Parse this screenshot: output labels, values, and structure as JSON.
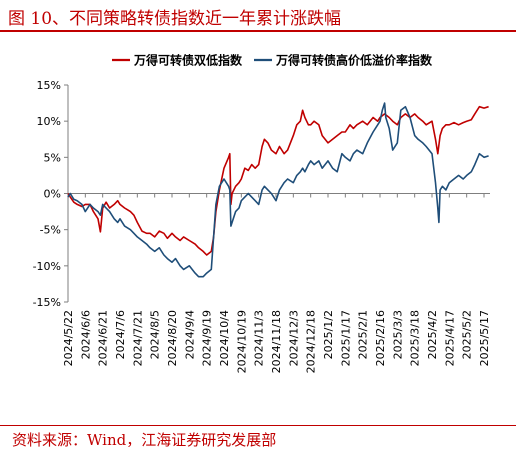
{
  "header": {
    "title": "图 10、不同策略转债指数近一年累计涨跌幅"
  },
  "footer": {
    "source": "资料来源：Wind，江海证券研究发展部"
  },
  "colors": {
    "series1": "#c00000",
    "series2": "#1f4e79",
    "accent": "#c00000"
  },
  "chart_data": {
    "type": "line",
    "title": "",
    "xlabel": "",
    "ylabel": "",
    "ylim": [
      -15,
      15
    ],
    "yticks": [
      -15,
      -10,
      -5,
      0,
      5,
      10,
      15
    ],
    "ytick_labels": [
      "-15%",
      "-10%",
      "-5%",
      "0%",
      "5%",
      "10%",
      "15%"
    ],
    "legend_position": "top",
    "grid": false,
    "x_dates": [
      "2024/5/22",
      "2024/6/6",
      "2024/6/21",
      "2024/7/6",
      "2024/7/21",
      "2024/8/5",
      "2024/8/20",
      "2024/9/4",
      "2024/9/19",
      "2024/10/4",
      "2024/10/19",
      "2024/11/3",
      "2024/11/18",
      "2024/12/3",
      "2024/12/18",
      "2025/1/2",
      "2025/1/17",
      "2025/2/1",
      "2025/2/16",
      "2025/3/3",
      "2025/3/18",
      "2025/4/2",
      "2025/4/17",
      "2025/5/2",
      "2025/5/17"
    ],
    "series": [
      {
        "name": "万得可转债双低指数",
        "color": "#c00000",
        "points": [
          [
            "2024/5/22",
            0.0
          ],
          [
            "2024/5/24",
            -0.5
          ],
          [
            "2024/5/27",
            -1.2
          ],
          [
            "2024/5/30",
            -1.5
          ],
          [
            "2024/6/3",
            -1.8
          ],
          [
            "2024/6/6",
            -1.5
          ],
          [
            "2024/6/10",
            -1.5
          ],
          [
            "2024/6/13",
            -2.5
          ],
          [
            "2024/6/17",
            -3.5
          ],
          [
            "2024/6/19",
            -5.3
          ],
          [
            "2024/6/21",
            -2.0
          ],
          [
            "2024/6/24",
            -1.2
          ],
          [
            "2024/6/27",
            -2.0
          ],
          [
            "2024/7/1",
            -1.5
          ],
          [
            "2024/7/4",
            -1.0
          ],
          [
            "2024/7/6",
            -1.5
          ],
          [
            "2024/7/10",
            -2.0
          ],
          [
            "2024/7/15",
            -2.5
          ],
          [
            "2024/7/18",
            -3.0
          ],
          [
            "2024/7/21",
            -4.0
          ],
          [
            "2024/7/25",
            -5.2
          ],
          [
            "2024/7/29",
            -5.5
          ],
          [
            "2024/8/1",
            -5.5
          ],
          [
            "2024/8/5",
            -6.0
          ],
          [
            "2024/8/9",
            -5.2
          ],
          [
            "2024/8/13",
            -5.5
          ],
          [
            "2024/8/16",
            -6.2
          ],
          [
            "2024/8/20",
            -5.5
          ],
          [
            "2024/8/23",
            -6.0
          ],
          [
            "2024/8/27",
            -6.5
          ],
          [
            "2024/8/30",
            -6.0
          ],
          [
            "2024/9/4",
            -6.5
          ],
          [
            "2024/9/9",
            -7.0
          ],
          [
            "2024/9/12",
            -7.5
          ],
          [
            "2024/9/16",
            -8.0
          ],
          [
            "2024/9/19",
            -8.5
          ],
          [
            "2024/9/23",
            -8.0
          ],
          [
            "2024/9/25",
            -6.0
          ],
          [
            "2024/9/27",
            -2.5
          ],
          [
            "2024/9/30",
            0.5
          ],
          [
            "2024/10/4",
            3.5
          ],
          [
            "2024/10/8",
            5.0
          ],
          [
            "2024/10/9",
            5.5
          ],
          [
            "2024/10/10",
            -1.5
          ],
          [
            "2024/10/11",
            0.0
          ],
          [
            "2024/10/14",
            1.0
          ],
          [
            "2024/10/17",
            1.5
          ],
          [
            "2024/10/19",
            2.0
          ],
          [
            "2024/10/22",
            3.5
          ],
          [
            "2024/10/25",
            3.2
          ],
          [
            "2024/10/28",
            4.0
          ],
          [
            "2024/10/31",
            3.5
          ],
          [
            "2024/11/3",
            4.0
          ],
          [
            "2024/11/6",
            6.5
          ],
          [
            "2024/11/8",
            7.5
          ],
          [
            "2024/11/11",
            7.0
          ],
          [
            "2024/11/14",
            6.0
          ],
          [
            "2024/11/18",
            5.5
          ],
          [
            "2024/11/21",
            6.5
          ],
          [
            "2024/11/25",
            5.5
          ],
          [
            "2024/11/28",
            6.0
          ],
          [
            "2024/12/3",
            8.0
          ],
          [
            "2024/12/6",
            9.5
          ],
          [
            "2024/12/9",
            10.0
          ],
          [
            "2024/12/11",
            11.5
          ],
          [
            "2024/12/13",
            10.5
          ],
          [
            "2024/12/16",
            9.5
          ],
          [
            "2024/12/18",
            9.5
          ],
          [
            "2024/12/21",
            10.0
          ],
          [
            "2024/12/25",
            9.5
          ],
          [
            "2024/12/28",
            8.0
          ],
          [
            "2025/1/2",
            7.0
          ],
          [
            "2025/1/6",
            7.5
          ],
          [
            "2025/1/10",
            8.0
          ],
          [
            "2025/1/14",
            8.5
          ],
          [
            "2025/1/17",
            8.5
          ],
          [
            "2025/1/21",
            9.5
          ],
          [
            "2025/1/24",
            9.0
          ],
          [
            "2025/1/27",
            9.5
          ],
          [
            "2025/2/1",
            10.0
          ],
          [
            "2025/2/5",
            9.5
          ],
          [
            "2025/2/10",
            10.5
          ],
          [
            "2025/2/14",
            10.0
          ],
          [
            "2025/2/16",
            10.5
          ],
          [
            "2025/2/20",
            11.0
          ],
          [
            "2025/2/24",
            10.5
          ],
          [
            "2025/2/27",
            10.0
          ],
          [
            "2025/3/3",
            9.5
          ],
          [
            "2025/3/6",
            10.5
          ],
          [
            "2025/3/10",
            11.0
          ],
          [
            "2025/3/14",
            10.5
          ],
          [
            "2025/3/18",
            11.0
          ],
          [
            "2025/3/21",
            10.5
          ],
          [
            "2025/3/25",
            10.0
          ],
          [
            "2025/3/28",
            9.5
          ],
          [
            "2025/4/2",
            10.0
          ],
          [
            "2025/4/5",
            7.5
          ],
          [
            "2025/4/7",
            5.5
          ],
          [
            "2025/4/9",
            8.0
          ],
          [
            "2025/4/11",
            9.0
          ],
          [
            "2025/4/14",
            9.5
          ],
          [
            "2025/4/17",
            9.5
          ],
          [
            "2025/4/21",
            9.8
          ],
          [
            "2025/4/25",
            9.5
          ],
          [
            "2025/4/29",
            9.8
          ],
          [
            "2025/5/2",
            10.0
          ],
          [
            "2025/5/6",
            10.2
          ],
          [
            "2025/5/9",
            11.0
          ],
          [
            "2025/5/13",
            12.0
          ],
          [
            "2025/5/17",
            11.8
          ],
          [
            "2025/5/21",
            12.0
          ]
        ]
      },
      {
        "name": "万得可转债高价低溢价率指数",
        "color": "#1f4e79",
        "points": [
          [
            "2024/5/22",
            -0.5
          ],
          [
            "2024/5/24",
            0.0
          ],
          [
            "2024/5/27",
            -0.8
          ],
          [
            "2024/5/30",
            -1.0
          ],
          [
            "2024/6/3",
            -1.5
          ],
          [
            "2024/6/6",
            -2.5
          ],
          [
            "2024/6/10",
            -1.5
          ],
          [
            "2024/6/13",
            -2.0
          ],
          [
            "2024/6/17",
            -2.5
          ],
          [
            "2024/6/19",
            -3.0
          ],
          [
            "2024/6/21",
            -1.5
          ],
          [
            "2024/6/24",
            -2.0
          ],
          [
            "2024/6/27",
            -2.5
          ],
          [
            "2024/7/1",
            -3.5
          ],
          [
            "2024/7/4",
            -4.0
          ],
          [
            "2024/7/6",
            -3.5
          ],
          [
            "2024/7/10",
            -4.5
          ],
          [
            "2024/7/15",
            -5.0
          ],
          [
            "2024/7/18",
            -5.5
          ],
          [
            "2024/7/21",
            -6.0
          ],
          [
            "2024/7/25",
            -6.5
          ],
          [
            "2024/7/29",
            -7.0
          ],
          [
            "2024/8/1",
            -7.5
          ],
          [
            "2024/8/5",
            -8.0
          ],
          [
            "2024/8/9",
            -7.5
          ],
          [
            "2024/8/13",
            -8.5
          ],
          [
            "2024/8/16",
            -9.0
          ],
          [
            "2024/8/20",
            -9.5
          ],
          [
            "2024/8/23",
            -9.0
          ],
          [
            "2024/8/27",
            -10.0
          ],
          [
            "2024/8/30",
            -10.5
          ],
          [
            "2024/9/4",
            -10.0
          ],
          [
            "2024/9/9",
            -11.0
          ],
          [
            "2024/9/12",
            -11.5
          ],
          [
            "2024/9/16",
            -11.5
          ],
          [
            "2024/9/19",
            -11.0
          ],
          [
            "2024/9/23",
            -10.5
          ],
          [
            "2024/9/25",
            -6.0
          ],
          [
            "2024/9/27",
            -1.5
          ],
          [
            "2024/9/30",
            1.0
          ],
          [
            "2024/10/4",
            2.0
          ],
          [
            "2024/10/8",
            1.0
          ],
          [
            "2024/10/9",
            0.5
          ],
          [
            "2024/10/10",
            -4.5
          ],
          [
            "2024/10/11",
            -4.0
          ],
          [
            "2024/10/14",
            -2.5
          ],
          [
            "2024/10/17",
            -2.0
          ],
          [
            "2024/10/19",
            -1.0
          ],
          [
            "2024/10/22",
            -0.5
          ],
          [
            "2024/10/25",
            0.0
          ],
          [
            "2024/10/28",
            -0.5
          ],
          [
            "2024/10/31",
            -1.0
          ],
          [
            "2024/11/3",
            -1.5
          ],
          [
            "2024/11/6",
            0.5
          ],
          [
            "2024/11/8",
            1.0
          ],
          [
            "2024/11/11",
            0.5
          ],
          [
            "2024/11/14",
            0.0
          ],
          [
            "2024/11/18",
            -1.0
          ],
          [
            "2024/11/21",
            0.5
          ],
          [
            "2024/11/25",
            1.5
          ],
          [
            "2024/11/28",
            2.0
          ],
          [
            "2024/12/3",
            1.5
          ],
          [
            "2024/12/6",
            2.5
          ],
          [
            "2024/12/9",
            3.0
          ],
          [
            "2024/12/11",
            3.5
          ],
          [
            "2024/12/13",
            3.0
          ],
          [
            "2024/12/16",
            4.0
          ],
          [
            "2024/12/18",
            4.5
          ],
          [
            "2024/12/21",
            4.0
          ],
          [
            "2024/12/25",
            4.5
          ],
          [
            "2024/12/28",
            3.5
          ],
          [
            "2025/1/2",
            4.5
          ],
          [
            "2025/1/6",
            3.5
          ],
          [
            "2025/1/10",
            3.0
          ],
          [
            "2025/1/14",
            5.5
          ],
          [
            "2025/1/17",
            5.0
          ],
          [
            "2025/1/21",
            4.5
          ],
          [
            "2025/1/24",
            5.5
          ],
          [
            "2025/1/27",
            6.0
          ],
          [
            "2025/2/1",
            5.5
          ],
          [
            "2025/2/5",
            7.0
          ],
          [
            "2025/2/10",
            8.5
          ],
          [
            "2025/2/14",
            9.5
          ],
          [
            "2025/2/16",
            10.0
          ],
          [
            "2025/2/18",
            11.5
          ],
          [
            "2025/2/20",
            12.5
          ],
          [
            "2025/2/21",
            10.5
          ],
          [
            "2025/2/24",
            9.0
          ],
          [
            "2025/2/27",
            6.0
          ],
          [
            "2025/3/3",
            7.0
          ],
          [
            "2025/3/6",
            11.5
          ],
          [
            "2025/3/10",
            12.0
          ],
          [
            "2025/3/14",
            10.5
          ],
          [
            "2025/3/18",
            8.0
          ],
          [
            "2025/3/21",
            7.5
          ],
          [
            "2025/3/25",
            7.0
          ],
          [
            "2025/3/28",
            6.5
          ],
          [
            "2025/4/2",
            5.5
          ],
          [
            "2025/4/5",
            1.5
          ],
          [
            "2025/4/7",
            -2.0
          ],
          [
            "2025/4/8",
            -4.0
          ],
          [
            "2025/4/9",
            0.5
          ],
          [
            "2025/4/11",
            1.0
          ],
          [
            "2025/4/14",
            0.5
          ],
          [
            "2025/4/17",
            1.5
          ],
          [
            "2025/4/21",
            2.0
          ],
          [
            "2025/4/25",
            2.5
          ],
          [
            "2025/4/29",
            2.0
          ],
          [
            "2025/5/2",
            2.5
          ],
          [
            "2025/5/6",
            3.0
          ],
          [
            "2025/5/9",
            4.0
          ],
          [
            "2025/5/13",
            5.5
          ],
          [
            "2025/5/17",
            5.0
          ],
          [
            "2025/5/21",
            5.2
          ]
        ]
      }
    ]
  }
}
